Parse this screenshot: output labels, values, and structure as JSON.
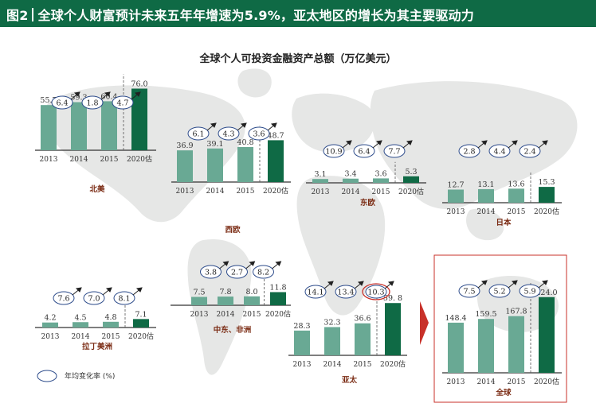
{
  "header": {
    "figure_label": "图2",
    "title": "全球个人财富预计未来五年年增速为5.9%，亚太地区的增长为其主要驱动力"
  },
  "chart_title": "全球个人可投资金融资产总额（万亿美元）",
  "legend": {
    "label": "年均变化率 (%)"
  },
  "colors": {
    "bar": "#69a994",
    "bar_forecast": "#0f6a45",
    "ellipse_stroke": "#2b4a8a",
    "highlight": "#c8312a",
    "header": "#0f6a45"
  },
  "chart_data": [
    {
      "type": "bar",
      "name": "北美",
      "categories": [
        "2013",
        "2014",
        "2015",
        "2020估"
      ],
      "values": [
        55.7,
        59.3,
        60.4,
        76.0
      ],
      "value_labels": [
        "55.7",
        "59.3",
        "60.4",
        "76.0"
      ],
      "rates": [
        "6.4",
        "1.8",
        "4.7"
      ]
    },
    {
      "type": "bar",
      "name": "西欧",
      "categories": [
        "2013",
        "2014",
        "2015",
        "2020估"
      ],
      "values": [
        36.9,
        39.1,
        40.8,
        48.7
      ],
      "value_labels": [
        "36.9",
        "39.1",
        "40.8",
        "48.7"
      ],
      "rates": [
        "6.1",
        "4.3",
        "3.6"
      ]
    },
    {
      "type": "bar",
      "name": "东欧",
      "categories": [
        "2013",
        "2014",
        "2015",
        "2020估"
      ],
      "values": [
        3.1,
        3.4,
        3.6,
        5.3
      ],
      "value_labels": [
        "3.1",
        "3.4",
        "3.6",
        "5.3"
      ],
      "rates": [
        "10.9",
        "6.4",
        "7.7"
      ]
    },
    {
      "type": "bar",
      "name": "日本",
      "categories": [
        "2013",
        "2014",
        "2015",
        "2020估"
      ],
      "values": [
        12.7,
        13.1,
        13.6,
        15.3
      ],
      "value_labels": [
        "12.7",
        "13.1",
        "13.6",
        "15.3"
      ],
      "rates": [
        "2.8",
        "4.4",
        "2.4"
      ]
    },
    {
      "type": "bar",
      "name": "拉丁美洲",
      "categories": [
        "2013",
        "2014",
        "2015",
        "2020估"
      ],
      "values": [
        4.2,
        4.5,
        4.8,
        7.1
      ],
      "value_labels": [
        "4.2",
        "4.5",
        "4.8",
        "7.1"
      ],
      "rates": [
        "7.6",
        "7.0",
        "8.1"
      ]
    },
    {
      "type": "bar",
      "name": "中东、非洲",
      "categories": [
        "2013",
        "2014",
        "2015",
        "2020估"
      ],
      "values": [
        7.5,
        7.8,
        8.0,
        11.8
      ],
      "value_labels": [
        "7.5",
        "7.8",
        "8.0",
        "11.8"
      ],
      "rates": [
        "3.8",
        "2.7",
        "8.2"
      ]
    },
    {
      "type": "bar",
      "name": "亚太",
      "categories": [
        "2013",
        "2014",
        "2015",
        "2020估"
      ],
      "values": [
        28.3,
        32.3,
        36.6,
        59.8
      ],
      "value_labels": [
        "28.3",
        "32.3",
        "36.6",
        "59. 8"
      ],
      "rates": [
        "14.1",
        "13.4",
        "10.3"
      ],
      "highlight_rate_index": 2
    },
    {
      "type": "bar",
      "name": "全球",
      "categories": [
        "2013",
        "2014",
        "2015",
        "2020估"
      ],
      "values": [
        148.4,
        159.5,
        167.8,
        224.0
      ],
      "value_labels": [
        "148.4",
        "159.5",
        "167.8",
        "224.0"
      ],
      "rates": [
        "7.5",
        "5.2",
        "5.9"
      ],
      "highlight_panel": true
    }
  ]
}
